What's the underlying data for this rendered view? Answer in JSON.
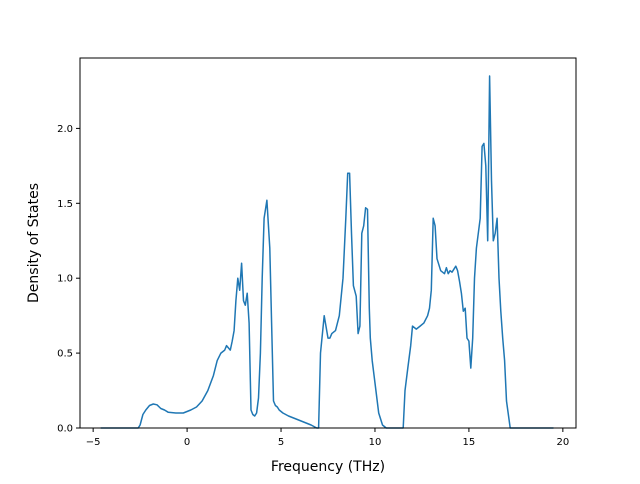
{
  "chart_data": {
    "type": "line",
    "title": "",
    "xlabel": "Frequency (THz)",
    "ylabel": "Density of States",
    "xlim": [
      -5.7,
      20.7
    ],
    "ylim": [
      0,
      2.47
    ],
    "xticks": [
      -5,
      0,
      5,
      10,
      15,
      20
    ],
    "yticks": [
      0.0,
      0.5,
      1.0,
      1.5,
      2.0
    ],
    "xtick_labels": [
      "−5",
      "0",
      "5",
      "10",
      "15",
      "20"
    ],
    "ytick_labels": [
      "0.0",
      "0.5",
      "1.0",
      "1.5",
      "2.0"
    ],
    "grid": false,
    "legend": "none",
    "series": [
      {
        "color": "#1f77b4",
        "x": [
          -4.6,
          -2.6,
          -2.5,
          -2.35,
          -2.2,
          -2.0,
          -1.8,
          -1.6,
          -1.4,
          -1.2,
          -1.0,
          -0.6,
          -0.2,
          0.2,
          0.5,
          0.8,
          1.1,
          1.4,
          1.6,
          1.8,
          2.0,
          2.1,
          2.3,
          2.4,
          2.5,
          2.6,
          2.7,
          2.8,
          2.9,
          3.0,
          3.1,
          3.2,
          3.3,
          3.4,
          3.5,
          3.6,
          3.7,
          3.8,
          3.9,
          4.0,
          4.1,
          4.25,
          4.4,
          4.5,
          4.6,
          4.7,
          4.8,
          4.9,
          5.1,
          5.4,
          5.8,
          6.2,
          6.6,
          6.9,
          7.0,
          7.1,
          7.3,
          7.5,
          7.6,
          7.7,
          7.9,
          8.1,
          8.3,
          8.45,
          8.55,
          8.65,
          8.75,
          8.85,
          9.0,
          9.1,
          9.2,
          9.3,
          9.4,
          9.5,
          9.6,
          9.7,
          9.75,
          9.85,
          10.0,
          10.2,
          10.4,
          10.6,
          10.8,
          11.2,
          11.5,
          11.6,
          11.75,
          11.9,
          12.0,
          12.2,
          12.4,
          12.6,
          12.8,
          12.9,
          13.0,
          13.1,
          13.2,
          13.3,
          13.5,
          13.7,
          13.8,
          13.9,
          14.0,
          14.1,
          14.3,
          14.4,
          14.5,
          14.6,
          14.7,
          14.8,
          14.9,
          15.0,
          15.1,
          15.2,
          15.3,
          15.4,
          15.6,
          15.7,
          15.8,
          15.9,
          16.0,
          16.1,
          16.2,
          16.3,
          16.4,
          16.5,
          16.6,
          16.7,
          16.8,
          16.9,
          17.0,
          17.2,
          17.4,
          17.6,
          17.8,
          18.0,
          19.5
        ],
        "y": [
          0.0,
          0.0,
          0.02,
          0.09,
          0.12,
          0.15,
          0.16,
          0.155,
          0.13,
          0.12,
          0.105,
          0.1,
          0.1,
          0.12,
          0.14,
          0.18,
          0.25,
          0.35,
          0.45,
          0.5,
          0.52,
          0.55,
          0.52,
          0.58,
          0.65,
          0.85,
          1.0,
          0.92,
          1.1,
          0.85,
          0.82,
          0.9,
          0.7,
          0.12,
          0.09,
          0.08,
          0.1,
          0.2,
          0.5,
          1.0,
          1.4,
          1.52,
          1.2,
          0.7,
          0.18,
          0.15,
          0.14,
          0.12,
          0.1,
          0.08,
          0.06,
          0.04,
          0.02,
          0.0,
          0.0,
          0.5,
          0.75,
          0.6,
          0.6,
          0.63,
          0.65,
          0.75,
          1.0,
          1.4,
          1.7,
          1.7,
          1.3,
          0.95,
          0.88,
          0.63,
          0.68,
          1.3,
          1.35,
          1.47,
          1.46,
          0.8,
          0.6,
          0.45,
          0.3,
          0.1,
          0.02,
          0.0,
          0.0,
          0.0,
          0.0,
          0.25,
          0.4,
          0.55,
          0.68,
          0.66,
          0.68,
          0.7,
          0.75,
          0.8,
          0.92,
          1.4,
          1.35,
          1.13,
          1.05,
          1.03,
          1.07,
          1.03,
          1.05,
          1.04,
          1.08,
          1.05,
          0.98,
          0.9,
          0.78,
          0.8,
          0.6,
          0.58,
          0.4,
          0.6,
          1.0,
          1.2,
          1.4,
          1.88,
          1.9,
          1.75,
          1.25,
          2.35,
          1.65,
          1.25,
          1.3,
          1.4,
          1.0,
          0.78,
          0.6,
          0.45,
          0.18,
          0.0,
          0.0,
          0.0,
          0.0,
          0.0,
          0.0
        ]
      }
    ]
  }
}
